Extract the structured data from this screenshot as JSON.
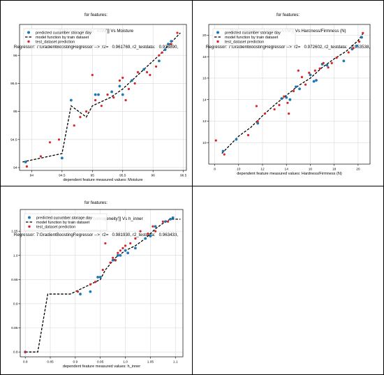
{
  "chart_data": [
    {
      "type": "scatter",
      "title_lines": [
        "for features:",
        "[['std' 'corr' 'energy' 'ASM']] Vs Moisture",
        "Regressor: 7:GradientBoostingRegressor -->  r2=   0.961769, r2_testdata:   0.933890,"
      ],
      "xlabel": "dependent feature measured values: Moisture",
      "ylabel": "",
      "xlim": [
        93.8,
        96.55
      ],
      "ylim": [
        93.95,
        96.55
      ],
      "xticks": [
        94.0,
        94.5,
        95.0,
        95.5,
        96.0,
        96.5
      ],
      "yticks": [
        94.0,
        94.5,
        95.0,
        95.5,
        96.0
      ],
      "grid": true,
      "legend_position": "top-left",
      "legend": [
        "predicted cucumber storage day",
        "model function by train dataset",
        "test_dataset prediction"
      ],
      "series": [
        {
          "name": "predicted cucumber storage day",
          "color": "#1f77b4",
          "points": [
            [
              93.9,
              94.1
            ],
            [
              94.5,
              94.17
            ],
            [
              94.65,
              95.2
            ],
            [
              95.05,
              95.3
            ],
            [
              95.1,
              95.3
            ],
            [
              95.32,
              95.35
            ],
            [
              95.45,
              95.45
            ],
            [
              95.5,
              95.3
            ],
            [
              95.65,
              95.55
            ],
            [
              95.85,
              95.75
            ],
            [
              96.1,
              95.9
            ],
            [
              96.2,
              96.1
            ],
            [
              96.25,
              96.2
            ],
            [
              96.3,
              96.25
            ]
          ]
        },
        {
          "name": "model function by train dataset",
          "color": "#000000",
          "points": [
            [
              93.85,
              94.1
            ],
            [
              94.5,
              94.25
            ],
            [
              94.65,
              95.1
            ],
            [
              94.9,
              94.9
            ],
            [
              95.0,
              95.1
            ],
            [
              95.3,
              95.25
            ],
            [
              95.5,
              95.4
            ],
            [
              95.8,
              95.7
            ],
            [
              96.1,
              96.0
            ],
            [
              96.45,
              96.4
            ]
          ]
        },
        {
          "name": "test_dataset prediction",
          "color": "#d62728",
          "points": [
            [
              93.92,
              94.02
            ],
            [
              94.15,
              94.2
            ],
            [
              94.3,
              94.45
            ],
            [
              94.45,
              94.5
            ],
            [
              94.7,
              94.75
            ],
            [
              94.8,
              94.9
            ],
            [
              94.9,
              95.0
            ],
            [
              95.0,
              95.65
            ],
            [
              95.05,
              95.2
            ],
            [
              95.15,
              95.1
            ],
            [
              95.25,
              95.3
            ],
            [
              95.35,
              95.25
            ],
            [
              95.45,
              95.55
            ],
            [
              95.5,
              95.6
            ],
            [
              95.55,
              95.2
            ],
            [
              95.6,
              95.4
            ],
            [
              95.7,
              95.5
            ],
            [
              95.75,
              95.7
            ],
            [
              95.9,
              95.7
            ],
            [
              95.95,
              95.65
            ],
            [
              96.05,
              95.8
            ],
            [
              96.1,
              96.0
            ],
            [
              96.15,
              96.05
            ],
            [
              96.3,
              96.2
            ],
            [
              96.4,
              96.4
            ]
          ]
        }
      ]
    },
    {
      "type": "scatter",
      "title_lines": [
        "for features:",
        "[['std' 'skewness' 'kurtosis' 'ASM']] Vs Hardness/Firmness (N)",
        "Regressor: 7:GradientBoostingRegressor -->  r2=   0.972602, r2_testdata:   0.953538,"
      ],
      "xlabel": "dependent feature measured values: Hardness/Firmness (N)",
      "ylabel": "",
      "xlim": [
        7.5,
        21.0
      ],
      "ylim": [
        8.0,
        21.0
      ],
      "xticks": [
        8,
        10,
        12,
        14,
        16,
        18,
        20
      ],
      "yticks": [
        10,
        12,
        14,
        16,
        18,
        20
      ],
      "grid": true,
      "legend_position": "top-left",
      "legend": [
        "predicted cucumber storage day",
        "model function by train dataset",
        "test_dataset prediction"
      ],
      "series": [
        {
          "name": "predicted cucumber storage day",
          "color": "#1f77b4",
          "points": [
            [
              8.7,
              9.2
            ],
            [
              9.8,
              10.3
            ],
            [
              11.6,
              11.8
            ],
            [
              13.6,
              14.1
            ],
            [
              14.0,
              14.2
            ],
            [
              14.3,
              14.0
            ],
            [
              14.8,
              15.2
            ],
            [
              15.1,
              15.0
            ],
            [
              16.0,
              16.3
            ],
            [
              16.3,
              15.7
            ],
            [
              16.5,
              15.8
            ],
            [
              17.0,
              17.3
            ],
            [
              17.4,
              17.2
            ],
            [
              18.8,
              17.6
            ],
            [
              19.5,
              18.7
            ],
            [
              19.9,
              19.0
            ],
            [
              20.3,
              19.8
            ]
          ]
        },
        {
          "name": "model function by train dataset",
          "color": "#000000",
          "points": [
            [
              8.6,
              9.0
            ],
            [
              10.0,
              10.6
            ],
            [
              11.0,
              11.4
            ],
            [
              12.0,
              12.5
            ],
            [
              13.0,
              13.5
            ],
            [
              14.0,
              14.4
            ],
            [
              15.0,
              15.3
            ],
            [
              16.0,
              16.0
            ],
            [
              17.0,
              17.0
            ],
            [
              18.0,
              17.8
            ],
            [
              19.0,
              18.5
            ],
            [
              20.0,
              19.5
            ],
            [
              20.5,
              20.3
            ]
          ]
        },
        {
          "name": "test_dataset prediction",
          "color": "#d62728",
          "points": [
            [
              8.1,
              10.2
            ],
            [
              8.8,
              8.9
            ],
            [
              10.8,
              10.7
            ],
            [
              11.5,
              13.4
            ],
            [
              11.6,
              12.0
            ],
            [
              12.2,
              12.7
            ],
            [
              13.0,
              13.1
            ],
            [
              13.4,
              13.5
            ],
            [
              13.8,
              14.3
            ],
            [
              14.1,
              13.7
            ],
            [
              14.2,
              12.7
            ],
            [
              14.6,
              14.8
            ],
            [
              15.0,
              16.7
            ],
            [
              15.3,
              16.1
            ],
            [
              15.6,
              15.4
            ],
            [
              15.9,
              16.5
            ],
            [
              16.4,
              16.7
            ],
            [
              16.8,
              16.9
            ],
            [
              17.1,
              17.4
            ],
            [
              17.5,
              17.0
            ],
            [
              17.8,
              17.4
            ],
            [
              18.2,
              17.9
            ],
            [
              19.2,
              18.4
            ],
            [
              19.6,
              18.8
            ],
            [
              20.1,
              19.4
            ],
            [
              20.4,
              20.2
            ]
          ]
        }
      ]
    },
    {
      "type": "scatter",
      "title_lines": [
        "for features:",
        "[['std' 'skewness' 'corr' 'homogeneity']] Vs h_inner",
        "Regressor: 7:GradientBoostingRegressor -->  r2=   0.981930, r2_testdata:   0.963433,"
      ],
      "xlabel": "dependent feature measured values: h_inner",
      "ylabel": "",
      "xlim": [
        0.79,
        1.115
      ],
      "ylim": [
        0.79,
        1.095
      ],
      "xticks": [
        0.8,
        0.85,
        0.9,
        0.95,
        1.0,
        1.05,
        1.1
      ],
      "xtick_labels": [
        "0.8",
        "0.85",
        "0.9",
        "0.95",
        "1.0",
        "1.05",
        "1.1"
      ],
      "yticks": [
        0.8,
        0.85,
        0.9,
        0.95,
        1.0,
        1.05
      ],
      "ytick_labels": [
        "0.8",
        "0.85",
        "0.9",
        "0.95",
        "1.0",
        "1.05"
      ],
      "grid": true,
      "legend_position": "top-left",
      "legend": [
        "predicted cucumber storage day",
        "model function by train dataset",
        "test_dataset prediction"
      ],
      "series": [
        {
          "name": "predicted cucumber storage day",
          "color": "#1f77b4",
          "points": [
            [
              0.8,
              0.8
            ],
            [
              0.91,
              0.92
            ],
            [
              0.93,
              0.925
            ],
            [
              0.945,
              0.955
            ],
            [
              0.95,
              0.955
            ],
            [
              0.975,
              0.99
            ],
            [
              0.98,
              0.99
            ],
            [
              0.985,
              1.0
            ],
            [
              0.99,
              1.0
            ],
            [
              1.0,
              1.01
            ],
            [
              1.005,
              1.005
            ],
            [
              1.02,
              1.015
            ],
            [
              1.04,
              1.035
            ],
            [
              1.05,
              1.04
            ],
            [
              1.06,
              1.06
            ],
            [
              1.08,
              1.07
            ],
            [
              1.09,
              1.075
            ],
            [
              1.095,
              1.078
            ]
          ]
        },
        {
          "name": "model function by train dataset",
          "color": "#000000",
          "points": [
            [
              0.8,
              0.8
            ],
            [
              0.825,
              0.8
            ],
            [
              0.845,
              0.92
            ],
            [
              0.89,
              0.92
            ],
            [
              0.93,
              0.94
            ],
            [
              0.95,
              0.95
            ],
            [
              0.96,
              0.97
            ],
            [
              0.98,
              0.995
            ],
            [
              1.0,
              1.01
            ],
            [
              1.02,
              1.02
            ],
            [
              1.04,
              1.035
            ],
            [
              1.06,
              1.055
            ],
            [
              1.08,
              1.07
            ],
            [
              1.09,
              1.075
            ],
            [
              1.11,
              1.075
            ]
          ]
        },
        {
          "name": "test_dataset prediction",
          "color": "#d62728",
          "points": [
            [
              0.8,
              0.8
            ],
            [
              0.905,
              0.925
            ],
            [
              0.93,
              0.94
            ],
            [
              0.94,
              0.945
            ],
            [
              0.955,
              0.97
            ],
            [
              0.96,
              1.025
            ],
            [
              0.97,
              0.985
            ],
            [
              0.975,
              0.995
            ],
            [
              0.98,
              0.99
            ],
            [
              0.985,
              1.005
            ],
            [
              0.99,
              1.01
            ],
            [
              0.995,
              1.015
            ],
            [
              1.0,
              1.02
            ],
            [
              1.01,
              1.025
            ],
            [
              1.02,
              1.035
            ],
            [
              1.03,
              1.05
            ],
            [
              1.045,
              1.045
            ],
            [
              1.055,
              1.06
            ],
            [
              1.06,
              1.05
            ],
            [
              1.075,
              1.07
            ],
            [
              1.085,
              1.07
            ]
          ]
        }
      ]
    }
  ]
}
